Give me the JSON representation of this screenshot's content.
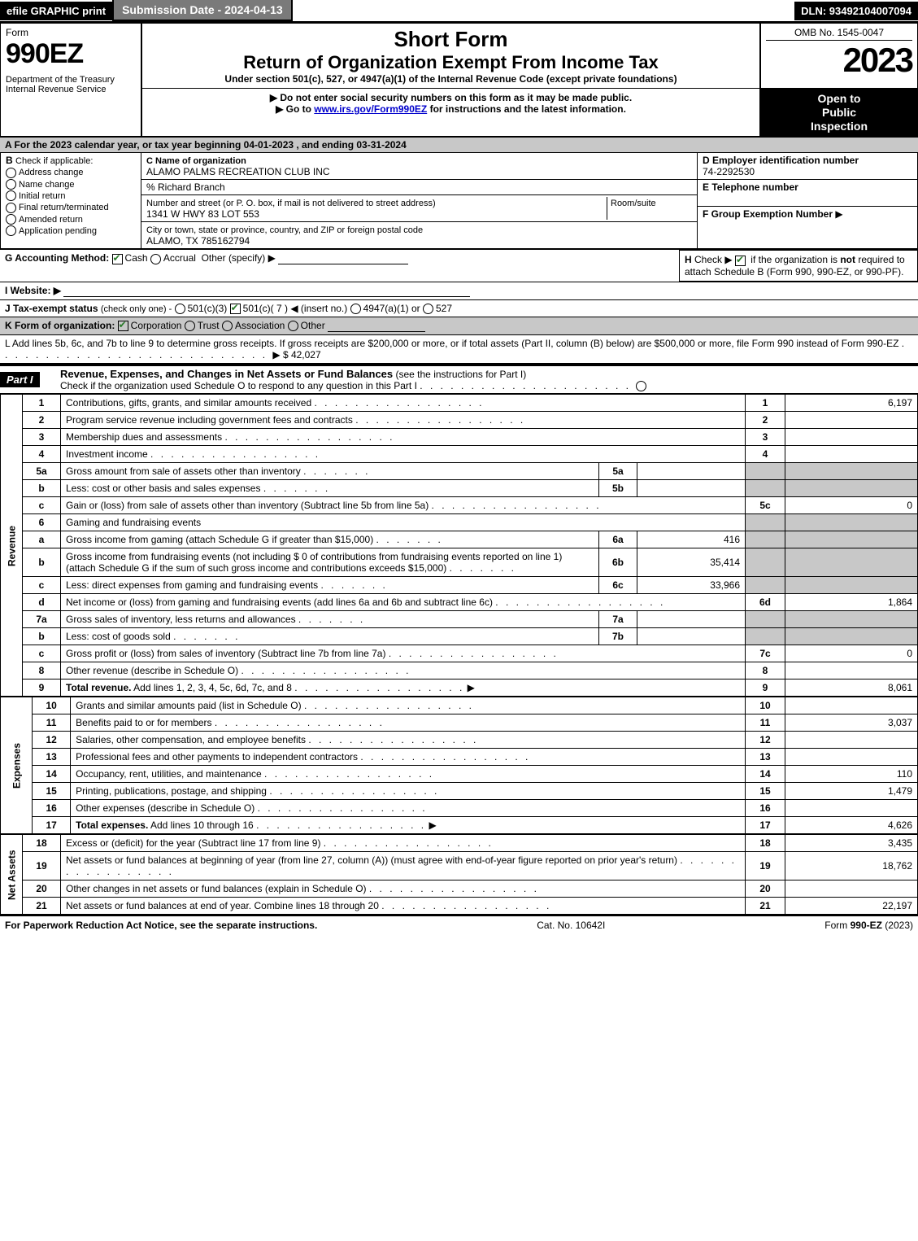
{
  "top": {
    "efile": "efile GRAPHIC print",
    "submission": "Submission Date - 2024-04-13",
    "dln": "DLN: 93492104007094"
  },
  "header": {
    "form_word": "Form",
    "form_num": "990EZ",
    "dept": "Department of the Treasury\nInternal Revenue Service",
    "short_form": "Short Form",
    "return_title": "Return of Organization Exempt From Income Tax",
    "sub": "Under section 501(c), 527, or 4947(a)(1) of the Internal Revenue Code (except private foundations)",
    "instr1": "▶ Do not enter social security numbers on this form as it may be made public.",
    "instr2_pre": "▶ Go to ",
    "instr2_link": "www.irs.gov/Form990EZ",
    "instr2_post": " for instructions and the latest information.",
    "omb": "OMB No. 1545-0047",
    "year": "2023",
    "inspection1": "Open to",
    "inspection2": "Public",
    "inspection3": "Inspection"
  },
  "sectionA": "A  For the 2023 calendar year, or tax year beginning 04-01-2023  , and ending 03-31-2024",
  "B": {
    "title": "B",
    "check": "Check if applicable:",
    "items": [
      "Address change",
      "Name change",
      "Initial return",
      "Final return/terminated",
      "Amended return",
      "Application pending"
    ]
  },
  "C": {
    "label": "C Name of organization",
    "name": "ALAMO PALMS RECREATION CLUB INC",
    "care_of": "% Richard Branch",
    "street_label": "Number and street (or P. O. box, if mail is not delivered to street address)",
    "room_label": "Room/suite",
    "street": "1341 W HWY 83 LOT 553",
    "city_label": "City or town, state or province, country, and ZIP or foreign postal code",
    "city": "ALAMO, TX  785162794"
  },
  "D": {
    "label": "D Employer identification number",
    "value": "74-2292530"
  },
  "E": {
    "label": "E Telephone number",
    "value": ""
  },
  "F": {
    "label": "F Group Exemption Number",
    "arrow": "▶"
  },
  "G": {
    "label": "G Accounting Method:",
    "cash": "Cash",
    "accrual": "Accrual",
    "other": "Other (specify) ▶"
  },
  "H": {
    "label": "H",
    "text_pre": "Check ▶ ",
    "text_mid": " if the organization is ",
    "not": "not",
    "text_post": " required to attach Schedule B (Form 990, 990-EZ, or 990-PF)."
  },
  "I": {
    "label": "I Website: ▶"
  },
  "J": {
    "label": "J Tax-exempt status",
    "sub": "(check only one) -",
    "opt1": "501(c)(3)",
    "opt2": "501(c)( 7 ) ◀ (insert no.)",
    "opt3": "4947(a)(1) or",
    "opt4": "527"
  },
  "K": {
    "label": "K Form of organization:",
    "corp": "Corporation",
    "trust": "Trust",
    "assoc": "Association",
    "other": "Other"
  },
  "L": {
    "text": "L Add lines 5b, 6c, and 7b to line 9 to determine gross receipts. If gross receipts are $200,000 or more, or if total assets (Part II, column (B) below) are $500,000 or more, file Form 990 instead of Form 990-EZ",
    "amount": "$ 42,027"
  },
  "part1": {
    "header": "Part I",
    "title": "Revenue, Expenses, and Changes in Net Assets or Fund Balances",
    "sub": "(see the instructions for Part I)",
    "check_text": "Check if the organization used Schedule O to respond to any question in this Part I"
  },
  "side_labels": {
    "revenue": "Revenue",
    "expenses": "Expenses",
    "netassets": "Net Assets"
  },
  "lines": [
    {
      "n": "1",
      "desc": "Contributions, gifts, grants, and similar amounts received",
      "box": "1",
      "amt": "6,197"
    },
    {
      "n": "2",
      "desc": "Program service revenue including government fees and contracts",
      "box": "2",
      "amt": ""
    },
    {
      "n": "3",
      "desc": "Membership dues and assessments",
      "box": "3",
      "amt": ""
    },
    {
      "n": "4",
      "desc": "Investment income",
      "box": "4",
      "amt": ""
    },
    {
      "n": "5a",
      "desc": "Gross amount from sale of assets other than inventory",
      "inline_box": "5a",
      "inline_amt": "",
      "grey": true
    },
    {
      "n": "b",
      "desc": "Less: cost or other basis and sales expenses",
      "inline_box": "5b",
      "inline_amt": "",
      "grey": true
    },
    {
      "n": "c",
      "desc": "Gain or (loss) from sale of assets other than inventory (Subtract line 5b from line 5a)",
      "box": "5c",
      "amt": "0"
    },
    {
      "n": "6",
      "desc": "Gaming and fundraising events",
      "no_box": true,
      "grey": true
    },
    {
      "n": "a",
      "desc": "Gross income from gaming (attach Schedule G if greater than $15,000)",
      "inline_box": "6a",
      "inline_amt": "416",
      "grey": true
    },
    {
      "n": "b",
      "desc": "Gross income from fundraising events (not including $  0                    of contributions from fundraising events reported on line 1) (attach Schedule G if the sum of such gross income and contributions exceeds $15,000)",
      "inline_box": "6b",
      "inline_amt": "35,414",
      "grey": true
    },
    {
      "n": "c",
      "desc": "Less: direct expenses from gaming and fundraising events",
      "inline_box": "6c",
      "inline_amt": "33,966",
      "grey": true
    },
    {
      "n": "d",
      "desc": "Net income or (loss) from gaming and fundraising events (add lines 6a and 6b and subtract line 6c)",
      "box": "6d",
      "amt": "1,864"
    },
    {
      "n": "7a",
      "desc": "Gross sales of inventory, less returns and allowances",
      "inline_box": "7a",
      "inline_amt": "",
      "grey": true
    },
    {
      "n": "b",
      "desc": "Less: cost of goods sold",
      "inline_box": "7b",
      "inline_amt": "",
      "grey": true
    },
    {
      "n": "c",
      "desc": "Gross profit or (loss) from sales of inventory (Subtract line 7b from line 7a)",
      "box": "7c",
      "amt": "0"
    },
    {
      "n": "8",
      "desc": "Other revenue (describe in Schedule O)",
      "box": "8",
      "amt": ""
    },
    {
      "n": "9",
      "desc": "Total revenue. Add lines 1, 2, 3, 4, 5c, 6d, 7c, and 8",
      "box": "9",
      "amt": "8,061",
      "bold": true,
      "arrow": true
    }
  ],
  "exp_lines": [
    {
      "n": "10",
      "desc": "Grants and similar amounts paid (list in Schedule O)",
      "box": "10",
      "amt": ""
    },
    {
      "n": "11",
      "desc": "Benefits paid to or for members",
      "box": "11",
      "amt": "3,037"
    },
    {
      "n": "12",
      "desc": "Salaries, other compensation, and employee benefits",
      "box": "12",
      "amt": ""
    },
    {
      "n": "13",
      "desc": "Professional fees and other payments to independent contractors",
      "box": "13",
      "amt": ""
    },
    {
      "n": "14",
      "desc": "Occupancy, rent, utilities, and maintenance",
      "box": "14",
      "amt": "110"
    },
    {
      "n": "15",
      "desc": "Printing, publications, postage, and shipping",
      "box": "15",
      "amt": "1,479"
    },
    {
      "n": "16",
      "desc": "Other expenses (describe in Schedule O)",
      "box": "16",
      "amt": ""
    },
    {
      "n": "17",
      "desc": "Total expenses. Add lines 10 through 16",
      "box": "17",
      "amt": "4,626",
      "bold": true,
      "arrow": true
    }
  ],
  "na_lines": [
    {
      "n": "18",
      "desc": "Excess or (deficit) for the year (Subtract line 17 from line 9)",
      "box": "18",
      "amt": "3,435"
    },
    {
      "n": "19",
      "desc": "Net assets or fund balances at beginning of year (from line 27, column (A)) (must agree with end-of-year figure reported on prior year's return)",
      "box": "19",
      "amt": "18,762",
      "tall": true
    },
    {
      "n": "20",
      "desc": "Other changes in net assets or fund balances (explain in Schedule O)",
      "box": "20",
      "amt": ""
    },
    {
      "n": "21",
      "desc": "Net assets or fund balances at end of year. Combine lines 18 through 20",
      "box": "21",
      "amt": "22,197"
    }
  ],
  "footer": {
    "left": "For Paperwork Reduction Act Notice, see the separate instructions.",
    "mid": "Cat. No. 10642I",
    "right_pre": "Form ",
    "right_form": "990-EZ",
    "right_post": " (2023)"
  }
}
